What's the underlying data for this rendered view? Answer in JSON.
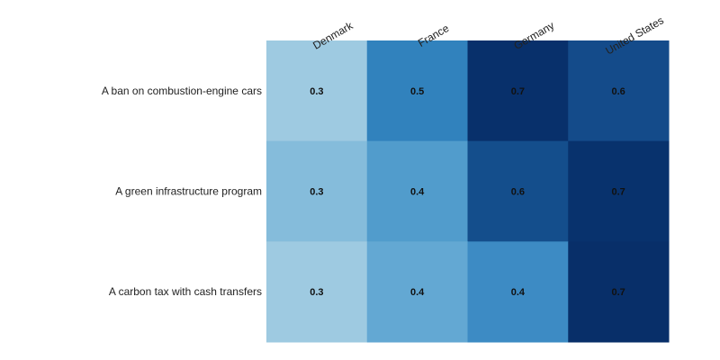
{
  "chart_data": {
    "type": "heatmap",
    "title": "",
    "xlabel": "",
    "ylabel": "",
    "x_categories": [
      "Denmark",
      "France",
      "Germany",
      "United States"
    ],
    "y_categories": [
      "A ban on combustion-engine cars",
      "A green infrastructure program",
      "A carbon tax with cash transfers"
    ],
    "values": [
      [
        0.3,
        0.5,
        0.7,
        0.6
      ],
      [
        0.3,
        0.4,
        0.6,
        0.7
      ],
      [
        0.3,
        0.4,
        0.4,
        0.7
      ]
    ],
    "cell_colors": [
      [
        "#9ecae1",
        "#3182bd",
        "#08306b",
        "#144b8a"
      ],
      [
        "#85bcdb",
        "#519ccc",
        "#144e8c",
        "#08326d"
      ],
      [
        "#9ecae1",
        "#63a8d3",
        "#3d8bc4",
        "#082f69"
      ]
    ],
    "colormap": "Blues",
    "value_labels_shown": true,
    "x_tick_position": "top",
    "x_tick_rotation": "diagonal",
    "grid": false,
    "legend": "none"
  }
}
